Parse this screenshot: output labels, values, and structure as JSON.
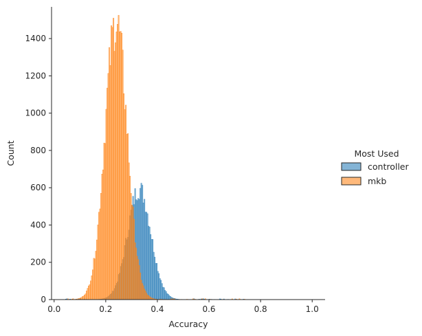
{
  "chart_data": {
    "type": "histogram",
    "xlabel": "Accuracy",
    "ylabel": "Count",
    "xlim": [
      -0.01,
      1.05
    ],
    "ylim": [
      0,
      1570
    ],
    "xticks": [
      0.0,
      0.2,
      0.4,
      0.6,
      0.8,
      1.0
    ],
    "xtick_labels": [
      "0.0",
      "0.2",
      "0.4",
      "0.6",
      "0.8",
      "1.0"
    ],
    "yticks": [
      0,
      200,
      400,
      600,
      800,
      1000,
      1200,
      1400
    ],
    "ytick_labels": [
      "0",
      "200",
      "400",
      "600",
      "800",
      "1000",
      "1200",
      "1400"
    ],
    "grid": false,
    "legend": {
      "title": "Most Used",
      "placement": "right",
      "entries": [
        "controller",
        "mkb"
      ]
    },
    "series": [
      {
        "name": "controller",
        "color": "#1f77b4",
        "mean": 0.33,
        "std": 0.045,
        "peak": 595
      },
      {
        "name": "mkb",
        "color": "#ff7f0e",
        "mean": 0.24,
        "std": 0.043,
        "peak": 1490
      }
    ]
  }
}
